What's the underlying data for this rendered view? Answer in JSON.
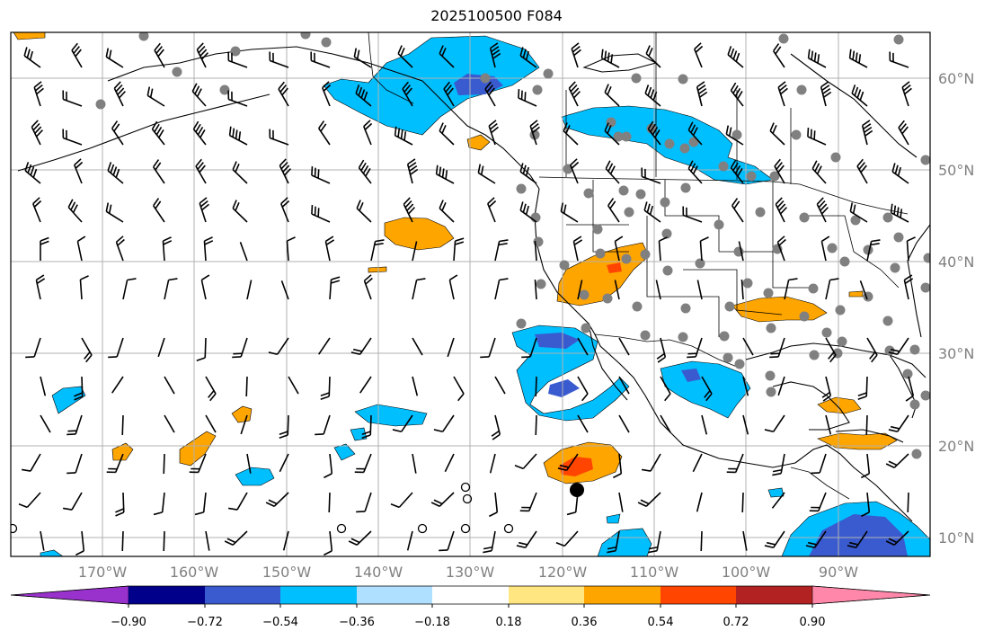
{
  "title": "2025100500 F084",
  "lon_labels": [
    "170°W",
    "160°W",
    "150°W",
    "140°W",
    "130°W",
    "120°W",
    "110°W",
    "100°W",
    "90°W"
  ],
  "lat_labels": [
    "60°N",
    "50°N",
    "40°N",
    "30°N",
    "20°N",
    "10°N"
  ],
  "colorbar": {
    "tick_labels": [
      "−0.90",
      "−0.72",
      "−0.54",
      "−0.36",
      "−0.18",
      "0.18",
      "0.36",
      "0.54",
      "0.72",
      "0.90"
    ],
    "colors": [
      "#9932cc",
      "#00008b",
      "#3a5bcf",
      "#00bfff",
      "#b0e0ff",
      "#ffffff",
      "#ffe680",
      "#ffa500",
      "#ff4500",
      "#b22222",
      "#ff88aa"
    ]
  },
  "colors": {
    "land_outline": "#000000",
    "grid": "#b0b0b0",
    "station_dot": "#808080",
    "negative_fill": "#00bfff",
    "negative_core": "#3a5bcf",
    "positive_fill": "#ffa500",
    "positive_core": "#ff4500"
  }
}
